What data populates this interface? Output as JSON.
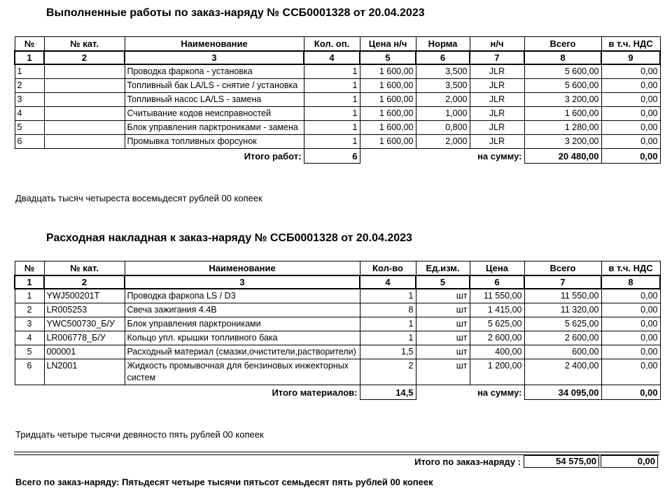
{
  "works": {
    "title": "Выполненные работы по заказ-наряду №  ССБ0001328 от 20.04.2023",
    "headers": [
      "№",
      "№ кат.",
      "Наименование",
      "Кол. оп.",
      "Цена н/ч",
      "Норма",
      "н/ч",
      "Всего",
      "в т.ч. НДС"
    ],
    "numbers": [
      "1",
      "2",
      "3",
      "4",
      "5",
      "6",
      "7",
      "8",
      "9"
    ],
    "rows": [
      [
        "1",
        "",
        "Проводка фаркопа - установка",
        "1",
        "1 600,00",
        "3,500",
        "JLR",
        "5 600,00",
        "0,00"
      ],
      [
        "2",
        "",
        "Топливный бак LA/LS - снятие / установка",
        "1",
        "1 600,00",
        "3,500",
        "JLR",
        "5 600,00",
        "0,00"
      ],
      [
        "3",
        "",
        "Топливный насос LA/LS - замена",
        "1",
        "1 600,00",
        "2,000",
        "JLR",
        "3 200,00",
        "0,00"
      ],
      [
        "4",
        "",
        "Считывание кодов неисправностей",
        "1",
        "1 600,00",
        "1,000",
        "JLR",
        "1 600,00",
        "0,00"
      ],
      [
        "5",
        "",
        "Блок управления парктрониками - замена",
        "1",
        "1 600,00",
        "0,800",
        "JLR",
        "1 280,00",
        "0,00"
      ],
      [
        "6",
        "",
        "Промывка топливных форсунок",
        "1",
        "1 600,00",
        "2,000",
        "JLR",
        "3 200,00",
        "0,00"
      ]
    ],
    "total_label": "Итого работ:",
    "total_qty": "6",
    "sum_label": "на сумму:",
    "total_sum": "20 480,00",
    "total_vat": "0,00",
    "words": "Двадцать тысяч четыреста восемьдесят рублей 00 копеек"
  },
  "materials": {
    "title": "Расходная накладная к заказ-наряду №  ССБ0001328 от 20.04.2023",
    "headers": [
      "№",
      "№ кат.",
      "Наименование",
      "Кол-во",
      "Ед.изм.",
      "Цена",
      "Всего",
      "в т.ч. НДС"
    ],
    "numbers": [
      "1",
      "2",
      "3",
      "4",
      "5",
      "6",
      "7",
      "8"
    ],
    "rows": [
      [
        "1",
        "YWJ500201T",
        "Проводка фаркопа LS / D3",
        "1",
        "шт",
        "11 550,00",
        "11 550,00",
        "0,00"
      ],
      [
        "2",
        "LR005253",
        "Свеча зажигания 4.4B",
        "8",
        "шт",
        "1 415,00",
        "11 320,00",
        "0,00"
      ],
      [
        "3",
        "YWC500730_Б/У",
        "Блок управления парктрониками",
        "1",
        "шт",
        "5 625,00",
        "5 625,00",
        "0,00"
      ],
      [
        "4",
        "LR006778_Б/У",
        "Кольцо упл. крышки топливного бака",
        "1",
        "шт",
        "2 600,00",
        "2 600,00",
        "0,00"
      ],
      [
        "5",
        "000001",
        "Расходный материал (смазки,очистители,растворители)",
        "1,5",
        "шт",
        "400,00",
        "600,00",
        "0,00"
      ],
      [
        "6",
        "LN2001",
        "Жидкость промывочная для бензиновых инжекторных систем",
        "2",
        "шт",
        "1 200,00",
        "2 400,00",
        "0,00"
      ]
    ],
    "total_label": "Итого материалов:",
    "total_qty": "14,5",
    "sum_label": "на сумму:",
    "total_sum": "34 095,00",
    "total_vat": "0,00",
    "words": "Тридцать четыре тысячи девяносто пять рублей 00 копеек"
  },
  "grand": {
    "label": "Итого по заказ-наряду :",
    "sum": "54 575,00",
    "vat": "0,00",
    "words": "Всего по заказ-наряду: Пятьдесят четыре тысячи пятьсот семьдесят пять рублей 00 копеек"
  }
}
